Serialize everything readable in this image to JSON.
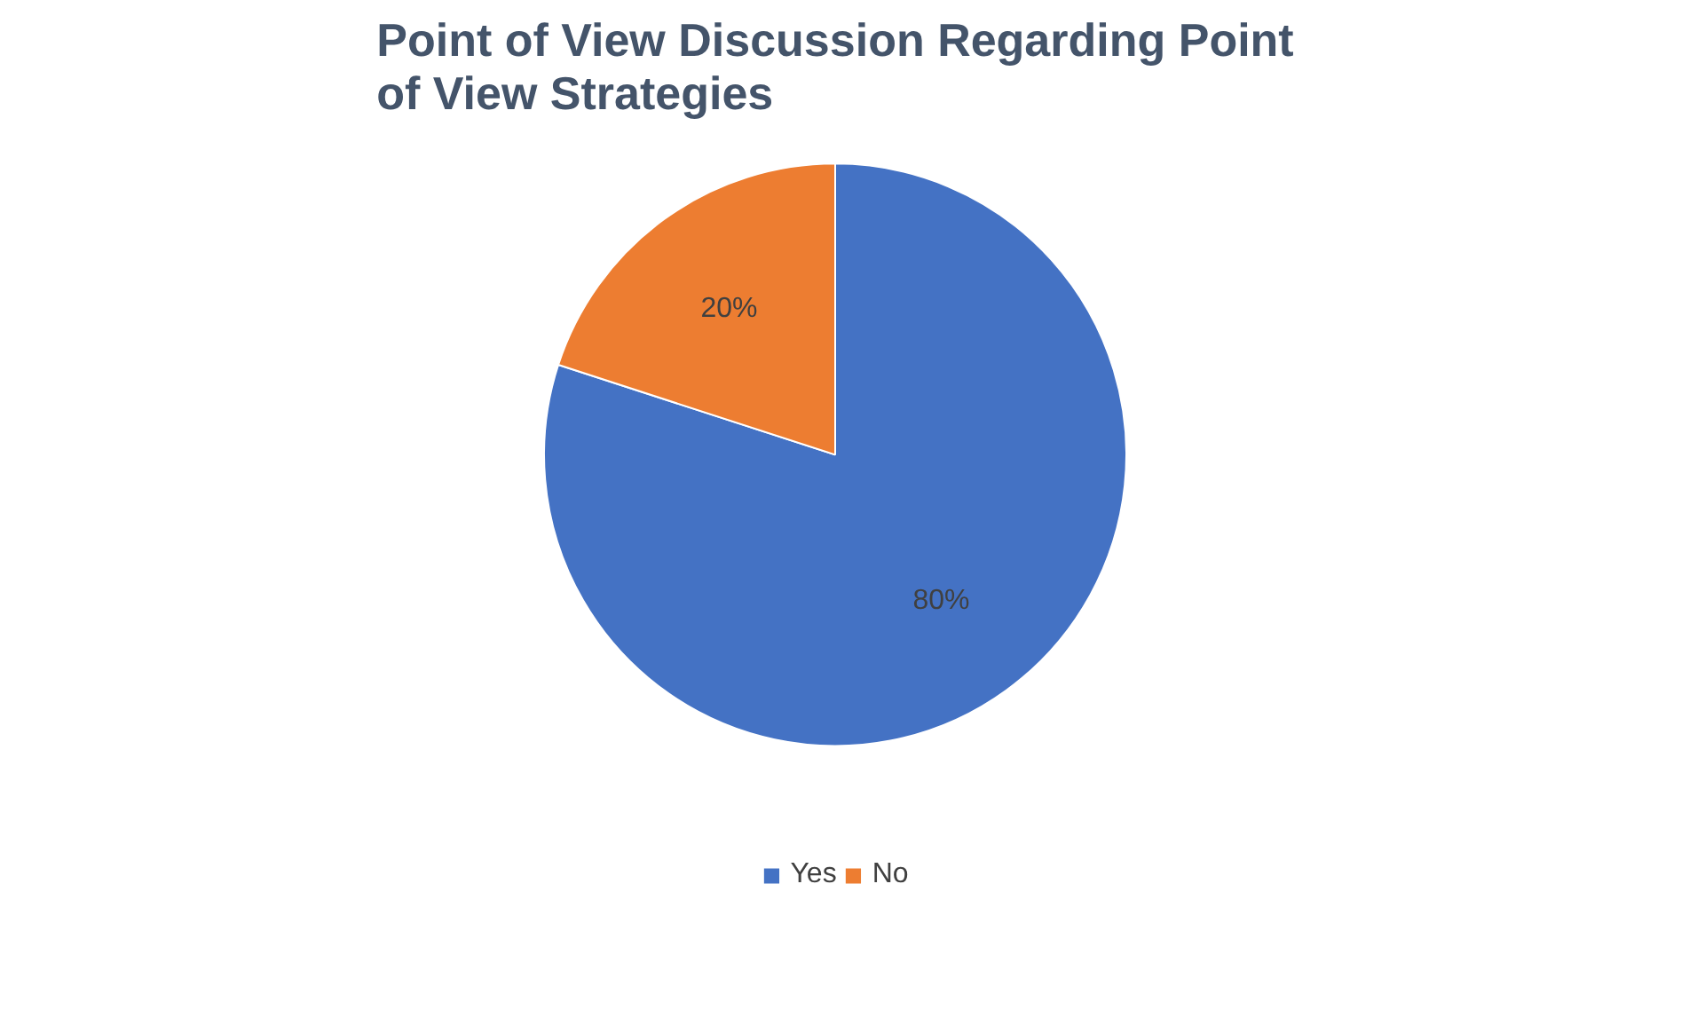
{
  "chart_data": {
    "type": "pie",
    "title": "Point of View Discussion Regarding Point of View Strategies",
    "categories": [
      "Yes",
      "No"
    ],
    "values": [
      80,
      20
    ],
    "colors": [
      "#4472c4",
      "#ed7d31"
    ],
    "value_labels": [
      "80%",
      "20%"
    ],
    "legend": "bottom"
  }
}
